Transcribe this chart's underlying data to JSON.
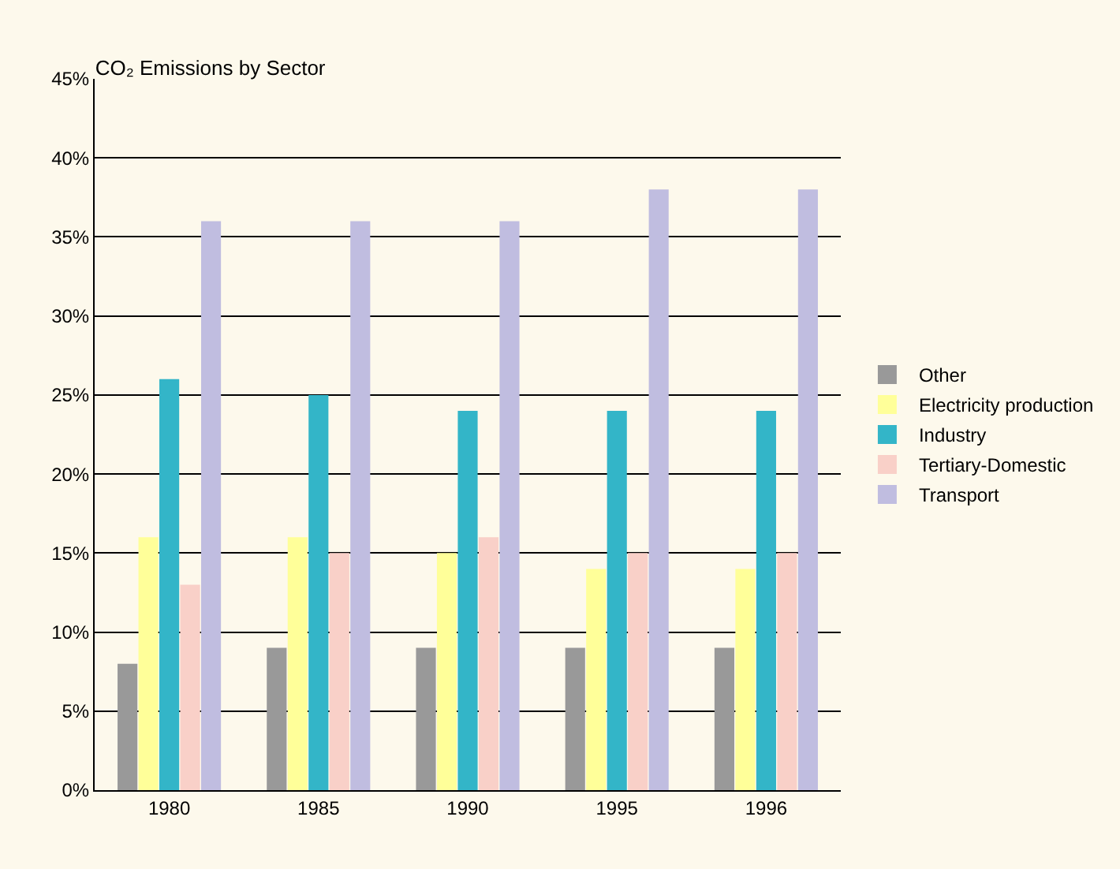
{
  "chart_data": {
    "type": "bar",
    "title": "CO₂ Emissions by Sector",
    "categories": [
      "1980",
      "1985",
      "1990",
      "1995",
      "1996"
    ],
    "series": [
      {
        "name": "Other",
        "color": "#999999",
        "values": [
          8,
          9,
          9,
          9,
          9
        ]
      },
      {
        "name": "Electricity production",
        "color": "#ffff99",
        "values": [
          16,
          16,
          15,
          14,
          14
        ]
      },
      {
        "name": "Industry",
        "color": "#33b5c8",
        "values": [
          26,
          25,
          24,
          24,
          24
        ]
      },
      {
        "name": "Tertiary-Domestic",
        "color": "#f9d0c8",
        "values": [
          13,
          15,
          16,
          15,
          15
        ]
      },
      {
        "name": "Transport",
        "color": "#c0bde0",
        "values": [
          36,
          36,
          36,
          38,
          38
        ]
      }
    ],
    "ylim": [
      0,
      45
    ],
    "yticks": [
      {
        "value": 0,
        "label": "0%"
      },
      {
        "value": 5,
        "label": "5%"
      },
      {
        "value": 10,
        "label": "10%"
      },
      {
        "value": 15,
        "label": "15%"
      },
      {
        "value": 20,
        "label": "20%"
      },
      {
        "value": 25,
        "label": "25%"
      },
      {
        "value": 30,
        "label": "30%"
      },
      {
        "value": 35,
        "label": "35%"
      },
      {
        "value": 40,
        "label": "40%"
      },
      {
        "value": 45,
        "label": "45%"
      }
    ],
    "grid": "y",
    "legend": "right"
  }
}
